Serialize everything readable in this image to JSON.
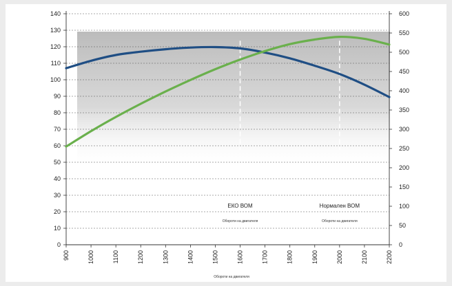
{
  "chart_data": {
    "type": "line",
    "title": "",
    "xlabel": "Обороти на двигателя",
    "ylabel": "",
    "y2label": "",
    "x": [
      900,
      1000,
      1100,
      1200,
      1300,
      1400,
      1500,
      1600,
      1700,
      1800,
      1900,
      2000,
      2100,
      2200
    ],
    "xticks": [
      "900",
      "1000",
      "1100",
      "1200",
      "1300",
      "1400",
      "1500",
      "1600",
      "1700",
      "1800",
      "1900",
      "2000",
      "2100",
      "2200"
    ],
    "ylim": [
      0,
      140
    ],
    "yticks": [
      "0",
      "10",
      "20",
      "30",
      "40",
      "50",
      "60",
      "70",
      "80",
      "90",
      "100",
      "110",
      "120",
      "130",
      "140"
    ],
    "y2lim": [
      0,
      600
    ],
    "y2ticks": [
      "0",
      "50",
      "100",
      "150",
      "200",
      "250",
      "300",
      "350",
      "400",
      "450",
      "500",
      "550",
      "600"
    ],
    "grid": "horizontal dashed",
    "series": [
      {
        "axis": "left",
        "color": "#1f4e84",
        "values": [
          107,
          111.5,
          115,
          117,
          118.5,
          119.5,
          119.8,
          119,
          116.5,
          113,
          108.5,
          103.5,
          97,
          89.5
        ]
      },
      {
        "axis": "right",
        "color": "#6ab04c",
        "values": [
          255,
          295,
          332,
          366,
          398,
          428,
          456,
          481,
          503,
          521,
          533,
          540,
          535,
          520
        ]
      }
    ],
    "annotations": [
      {
        "x": 1600,
        "label": "ЕКО ВОМ",
        "sublabel": "Обороти на двигателя"
      },
      {
        "x": 2000,
        "label": "Нормален ВОМ",
        "sublabel": "Обороти на двигателя"
      }
    ]
  }
}
